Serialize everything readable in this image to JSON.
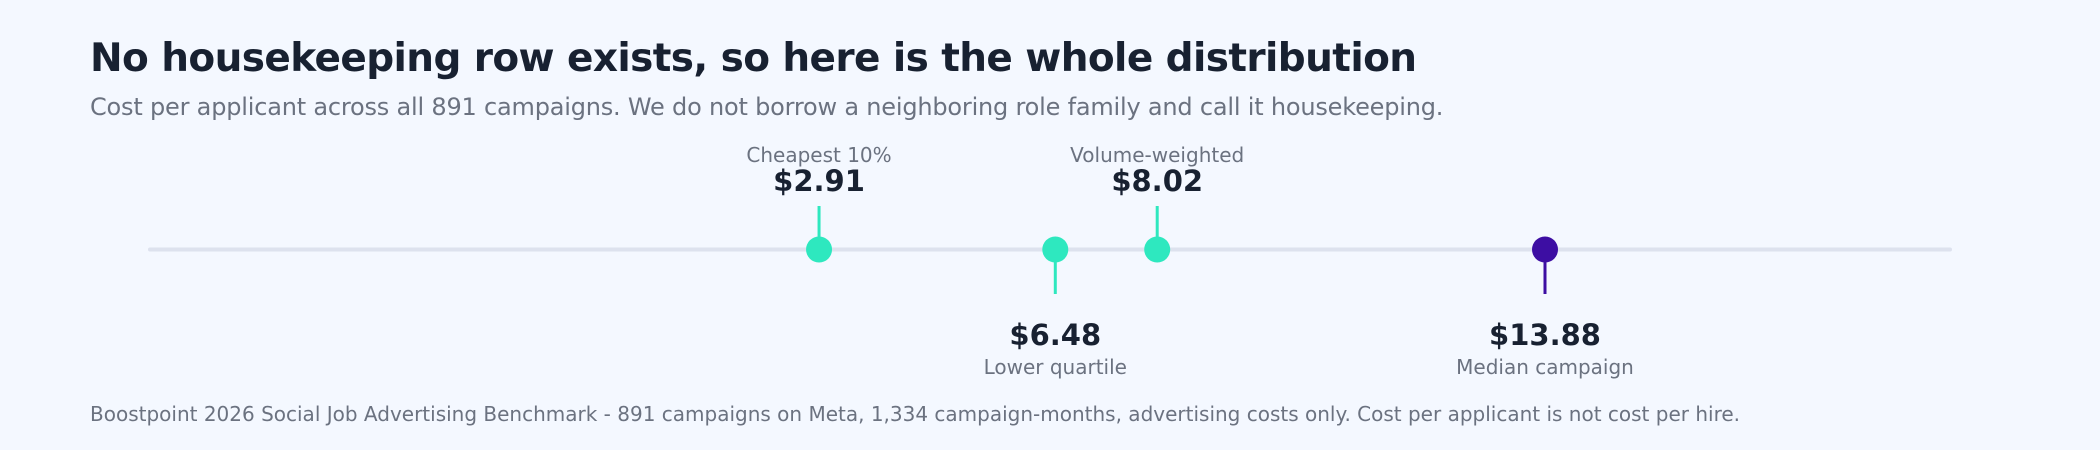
{
  "header": {
    "title": "No housekeeping row exists, so here is the whole distribution",
    "subtitle": "Cost per applicant across all 891 campaigns. We do not borrow a neighboring role family and call it housekeeping."
  },
  "footnote": "Boostpoint 2026 Social Job Advertising Benchmark - 891 campaigns on Meta, 1,334 campaign-months, advertising costs only. Cost per applicant is not cost per hire.",
  "colors": {
    "teal": "#2ee8bf",
    "purple": "#3d0ea3",
    "track": "#dde2ee"
  },
  "chart_data": {
    "type": "scatter",
    "title": "No housekeeping row exists, so here is the whole distribution",
    "subtitle": "Cost per applicant across all 891 campaigns. We do not borrow a neighboring role family and call it housekeeping.",
    "xlim": [
      -7.2,
      20
    ],
    "points": [
      {
        "label": "Cheapest 10%",
        "value": 2.91,
        "display": "$2.91",
        "position": "above",
        "color": "teal"
      },
      {
        "label": "Lower quartile",
        "value": 6.48,
        "display": "$6.48",
        "position": "below",
        "color": "teal"
      },
      {
        "label": "Volume-weighted",
        "value": 8.02,
        "display": "$8.02",
        "position": "above",
        "color": "teal"
      },
      {
        "label": "Median campaign",
        "value": 13.88,
        "display": "$13.88",
        "position": "below",
        "color": "purple"
      }
    ]
  }
}
